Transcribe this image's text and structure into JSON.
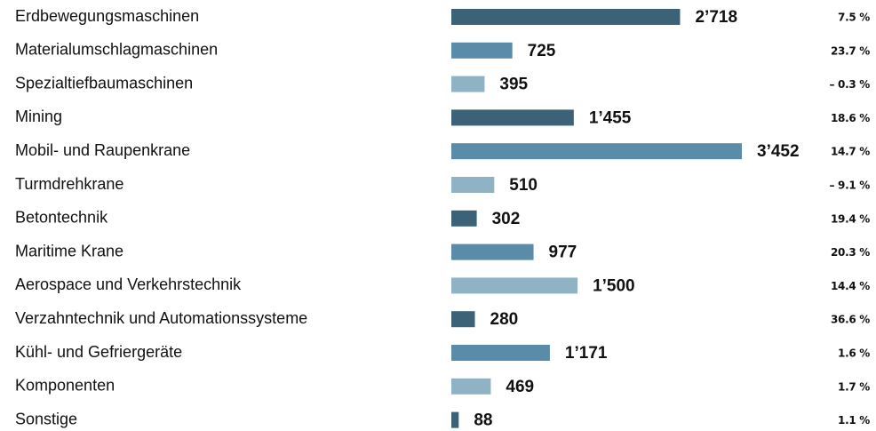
{
  "chart_data": {
    "type": "bar",
    "orientation": "horizontal",
    "categories": [
      "Erdbewegungsmaschinen",
      "Materialumschlagmaschinen",
      "Spezialtiefbaumaschinen",
      "Mining",
      "Mobil- und Raupenkrane",
      "Turmdrehkrane",
      "Betontechnik",
      "Maritime Krane",
      "Aerospace und Verkehrstechnik",
      "Verzahntechnik und Automationssysteme",
      "Kühl- und Gefriergeräte",
      "Komponenten",
      "Sonstige"
    ],
    "values": [
      2718,
      725,
      395,
      1455,
      3452,
      510,
      302,
      977,
      1500,
      280,
      1171,
      469,
      88
    ],
    "value_labels": [
      "2’718",
      "725",
      "395",
      "1’455",
      "3’452",
      "510",
      "302",
      "977",
      "1’500",
      "280",
      "1’171",
      "469",
      "88"
    ],
    "colors": [
      "#3b6277",
      "#5a8ba9",
      "#8fb3c5"
    ],
    "changes": {
      "values": [
        7.5,
        23.7,
        -0.3,
        18.6,
        14.7,
        -9.1,
        19.4,
        20.3,
        14.4,
        36.6,
        1.6,
        1.7,
        1.1
      ],
      "value_labels": [
        "7.5 %",
        "23.7 %",
        "– 0.3 %",
        "18.6 %",
        "14.7 %",
        "– 9.1 %",
        "19.4 %",
        "20.3 %",
        "14.4 %",
        "36.6 %",
        "1.6 %",
        "1.7 %",
        "1.1 %"
      ]
    }
  }
}
